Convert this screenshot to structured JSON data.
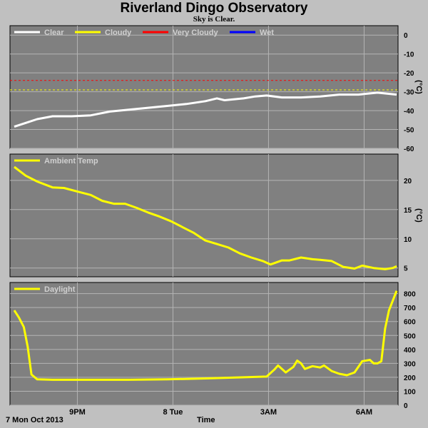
{
  "title": "Riverland Dingo Observatory",
  "subtitle": "Sky is Clear.",
  "colors": {
    "background": "#c0c0c0",
    "plot_bg": "#808080",
    "grid": "#b4b4b4",
    "clear": "#ffffff",
    "cloudy": "#ffff00",
    "very_cloudy": "#ff0000",
    "wet": "#0000ff",
    "yellow_trace": "#ffff00"
  },
  "footer": {
    "date_label": "7 Mon Oct 2013",
    "x_axis_title": "Time"
  },
  "x_ticks": [
    {
      "label": "9PM",
      "t": 0.165
    },
    {
      "label": "8 Tue",
      "t": 0.415
    },
    {
      "label": "3AM",
      "t": 0.665
    },
    {
      "label": "6AM",
      "t": 0.915
    }
  ],
  "chart_data": [
    {
      "type": "line",
      "title": "",
      "ylabel": "(°C)",
      "ylim": [
        -60,
        5
      ],
      "yticks": [
        0,
        -10,
        -20,
        -30,
        -40,
        -50,
        -60
      ],
      "thresholds": [
        {
          "name": "Very Cloudy",
          "value": -24,
          "color": "#ff0000"
        },
        {
          "name": "Cloudy",
          "value": -29,
          "color": "#ffff00"
        }
      ],
      "legend": [
        "Clear",
        "Cloudy",
        "Very Cloudy",
        "Wet"
      ],
      "series": [
        {
          "name": "Clear",
          "color": "#ffffff",
          "points": [
            [
              0,
              -48.5
            ],
            [
              0.03,
              -46.5
            ],
            [
              0.06,
              -44.5
            ],
            [
              0.1,
              -43
            ],
            [
              0.15,
              -43
            ],
            [
              0.2,
              -42.5
            ],
            [
              0.25,
              -40.5
            ],
            [
              0.3,
              -39.5
            ],
            [
              0.35,
              -38.5
            ],
            [
              0.4,
              -37.5
            ],
            [
              0.45,
              -36.5
            ],
            [
              0.5,
              -35
            ],
            [
              0.53,
              -33.5
            ],
            [
              0.55,
              -34.5
            ],
            [
              0.6,
              -33.5
            ],
            [
              0.63,
              -32.5
            ],
            [
              0.66,
              -32
            ],
            [
              0.7,
              -33
            ],
            [
              0.75,
              -33
            ],
            [
              0.8,
              -32.5
            ],
            [
              0.85,
              -31.5
            ],
            [
              0.9,
              -31.5
            ],
            [
              0.95,
              -30.5
            ],
            [
              1,
              -31.5
            ]
          ]
        }
      ]
    },
    {
      "type": "line",
      "title": "",
      "ylabel": "(°C)",
      "ylim": [
        3.5,
        24.5
      ],
      "yticks": [
        20,
        15,
        10,
        5
      ],
      "series": [
        {
          "name": "Ambient Temp",
          "color": "#ffff00",
          "points": [
            [
              0,
              22.3
            ],
            [
              0.03,
              20.8
            ],
            [
              0.06,
              19.8
            ],
            [
              0.1,
              18.8
            ],
            [
              0.13,
              18.7
            ],
            [
              0.17,
              18
            ],
            [
              0.2,
              17.5
            ],
            [
              0.23,
              16.5
            ],
            [
              0.26,
              16
            ],
            [
              0.29,
              16
            ],
            [
              0.32,
              15.3
            ],
            [
              0.35,
              14.5
            ],
            [
              0.38,
              13.8
            ],
            [
              0.41,
              13
            ],
            [
              0.44,
              12
            ],
            [
              0.47,
              11
            ],
            [
              0.5,
              9.7
            ],
            [
              0.53,
              9.1
            ],
            [
              0.56,
              8.5
            ],
            [
              0.59,
              7.5
            ],
            [
              0.62,
              6.8
            ],
            [
              0.65,
              6.2
            ],
            [
              0.67,
              5.6
            ],
            [
              0.7,
              6.3
            ],
            [
              0.72,
              6.3
            ],
            [
              0.75,
              6.8
            ],
            [
              0.78,
              6.5
            ],
            [
              0.8,
              6.4
            ],
            [
              0.83,
              6.2
            ],
            [
              0.86,
              5.2
            ],
            [
              0.89,
              4.9
            ],
            [
              0.91,
              5.4
            ],
            [
              0.94,
              5
            ],
            [
              0.97,
              4.8
            ],
            [
              0.99,
              5
            ],
            [
              1,
              5.3
            ]
          ]
        }
      ]
    },
    {
      "type": "line",
      "title": "",
      "ylabel": "",
      "ylim": [
        0,
        880
      ],
      "yticks": [
        0,
        100,
        200,
        300,
        400,
        500,
        600,
        700,
        800
      ],
      "series": [
        {
          "name": "Daylight",
          "color": "#ffff00",
          "points": [
            [
              0,
              680
            ],
            [
              0.012,
              630
            ],
            [
              0.025,
              560
            ],
            [
              0.035,
              420
            ],
            [
              0.045,
              220
            ],
            [
              0.06,
              185
            ],
            [
              0.1,
              182
            ],
            [
              0.2,
              182
            ],
            [
              0.3,
              182
            ],
            [
              0.4,
              185
            ],
            [
              0.5,
              192
            ],
            [
              0.6,
              200
            ],
            [
              0.66,
              205
            ],
            [
              0.68,
              255
            ],
            [
              0.69,
              285
            ],
            [
              0.71,
              235
            ],
            [
              0.73,
              275
            ],
            [
              0.74,
              320
            ],
            [
              0.75,
              300
            ],
            [
              0.76,
              260
            ],
            [
              0.78,
              280
            ],
            [
              0.8,
              270
            ],
            [
              0.81,
              285
            ],
            [
              0.83,
              245
            ],
            [
              0.85,
              225
            ],
            [
              0.87,
              215
            ],
            [
              0.89,
              235
            ],
            [
              0.91,
              315
            ],
            [
              0.93,
              325
            ],
            [
              0.94,
              300
            ],
            [
              0.95,
              300
            ],
            [
              0.96,
              315
            ],
            [
              0.97,
              550
            ],
            [
              0.98,
              680
            ],
            [
              1,
              820
            ]
          ]
        }
      ]
    }
  ]
}
